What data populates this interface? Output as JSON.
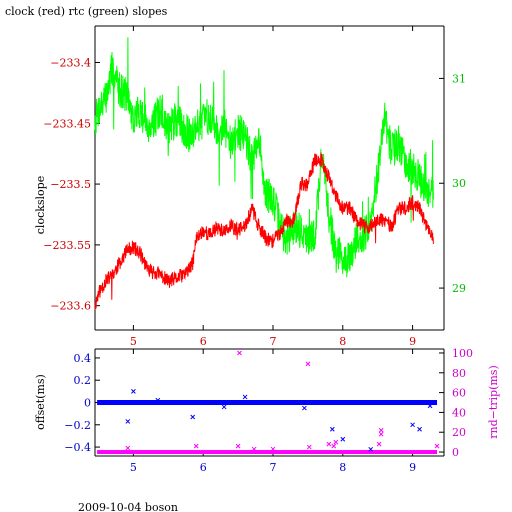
{
  "title": "clock (red) rtc (green) slopes",
  "footer": "2009-10-04 boson",
  "colors": {
    "clock": "#ff0000",
    "rtc": "#00ff00",
    "offset": "#0000ff",
    "rtt": "#ff00ff",
    "axis": "#000000"
  },
  "chart_data": [
    {
      "type": "line",
      "title": "clock (red) rtc (green) slopes",
      "ylabel": "clockslope",
      "x_ticks": [
        5,
        6,
        7,
        8,
        9
      ],
      "x_tick_labels": [
        "5",
        "6",
        "7",
        "8",
        "9"
      ],
      "xlim": [
        4.45,
        9.45
      ],
      "ylim": [
        -233.62,
        -233.37
      ],
      "y_ticks": [
        -233.4,
        -233.45,
        -233.5,
        -233.55,
        -233.6
      ],
      "y_tick_labels": [
        "−233.4",
        "−233.45",
        "−233.5",
        "−233.55",
        "−233.6"
      ],
      "y2lim": [
        28.6,
        31.5
      ],
      "y2_ticks": [
        29,
        30,
        31
      ],
      "y2_tick_labels": [
        "29",
        "30",
        "31"
      ],
      "series": [
        {
          "name": "clock",
          "axis": "left",
          "x": [
            4.45,
            4.5,
            4.55,
            4.6,
            4.7,
            4.8,
            4.9,
            5.0,
            5.1,
            5.2,
            5.3,
            5.4,
            5.5,
            5.6,
            5.7,
            5.8,
            5.85,
            5.9,
            6.0,
            6.1,
            6.2,
            6.3,
            6.4,
            6.5,
            6.6,
            6.7,
            6.8,
            6.9,
            7.0,
            7.1,
            7.2,
            7.3,
            7.4,
            7.5,
            7.6,
            7.7,
            7.8,
            7.9,
            8.0,
            8.1,
            8.2,
            8.3,
            8.4,
            8.5,
            8.6,
            8.7,
            8.8,
            8.9,
            9.0,
            9.1,
            9.2,
            9.3
          ],
          "y": [
            -233.6,
            -233.59,
            -233.585,
            -233.58,
            -233.575,
            -233.565,
            -233.555,
            -233.552,
            -233.557,
            -233.57,
            -233.572,
            -233.575,
            -233.58,
            -233.578,
            -233.575,
            -233.57,
            -233.565,
            -233.545,
            -233.538,
            -233.542,
            -233.535,
            -233.54,
            -233.535,
            -233.538,
            -233.535,
            -233.52,
            -233.535,
            -233.545,
            -233.547,
            -233.54,
            -233.53,
            -233.53,
            -233.5,
            -233.5,
            -233.48,
            -233.48,
            -233.495,
            -233.51,
            -233.52,
            -233.52,
            -233.53,
            -233.535,
            -233.535,
            -233.53,
            -233.53,
            -233.535,
            -233.52,
            -233.52,
            -233.515,
            -233.52,
            -233.535,
            -233.545
          ]
        },
        {
          "name": "rtc",
          "axis": "right",
          "x": [
            4.45,
            4.5,
            4.6,
            4.7,
            4.8,
            4.9,
            5.0,
            5.1,
            5.2,
            5.3,
            5.4,
            5.5,
            5.6,
            5.7,
            5.8,
            5.9,
            6.0,
            6.1,
            6.2,
            6.3,
            6.4,
            6.5,
            6.6,
            6.7,
            6.8,
            6.9,
            7.0,
            7.1,
            7.2,
            7.3,
            7.4,
            7.5,
            7.6,
            7.7,
            7.8,
            7.9,
            8.0,
            8.1,
            8.2,
            8.3,
            8.4,
            8.5,
            8.6,
            8.7,
            8.8,
            8.9,
            9.0,
            9.1,
            9.2,
            9.3
          ],
          "y": [
            30.6,
            30.7,
            30.8,
            31.1,
            30.9,
            30.85,
            30.6,
            30.7,
            30.55,
            30.6,
            30.7,
            30.5,
            30.6,
            30.55,
            30.45,
            30.55,
            30.6,
            30.65,
            30.5,
            30.55,
            30.35,
            30.5,
            30.45,
            30.2,
            30.4,
            29.9,
            29.85,
            29.6,
            29.45,
            29.6,
            29.55,
            29.45,
            29.5,
            30.3,
            29.7,
            29.35,
            29.3,
            29.25,
            29.5,
            29.5,
            29.6,
            30.1,
            30.6,
            30.3,
            30.4,
            30.2,
            30.15,
            30.05,
            29.85,
            29.95
          ]
        }
      ]
    },
    {
      "type": "scatter",
      "ylabel": "offset(ms)",
      "y2label": "rnd−trip(ms)",
      "x_ticks": [
        5,
        6,
        7,
        8,
        9
      ],
      "x_tick_labels": [
        "5",
        "6",
        "7",
        "8",
        "9"
      ],
      "xlim": [
        4.45,
        9.45
      ],
      "ylim": [
        -0.48,
        0.48
      ],
      "y_ticks": [
        0.4,
        0.2,
        0,
        -0.2,
        -0.4
      ],
      "y_tick_labels": [
        "0.4",
        "0.2",
        "0",
        "−0.2",
        "−0.4"
      ],
      "y2lim": [
        -4,
        104
      ],
      "y2_ticks": [
        0,
        20,
        40,
        60,
        80,
        100
      ],
      "y2_tick_labels": [
        "0",
        "20",
        "40",
        "60",
        "80",
        "100"
      ],
      "series": [
        {
          "name": "offset",
          "axis": "left",
          "band": {
            "x_start": 4.48,
            "x_end": 9.35,
            "y": 0.0
          },
          "outliers": {
            "x": [
              4.92,
              5.0,
              5.35,
              5.85,
              6.3,
              6.6,
              7.45,
              7.85,
              8.0,
              8.4,
              9.0,
              9.1,
              9.25
            ],
            "y": [
              -0.17,
              0.1,
              0.02,
              -0.13,
              -0.04,
              0.05,
              -0.05,
              -0.24,
              -0.33,
              -0.42,
              -0.2,
              -0.24,
              -0.03
            ]
          }
        },
        {
          "name": "rtt",
          "axis": "right",
          "band": {
            "x_start": 4.48,
            "x_end": 9.35,
            "y": 0.0
          },
          "outliers": {
            "x": [
              6.52,
              7.5,
              4.92,
              5.9,
              6.5,
              6.73,
              7.0,
              7.52,
              7.8,
              7.87,
              7.9,
              8.55,
              8.55,
              8.52,
              9.35
            ],
            "y": [
              100,
              89,
              4,
              6,
              6,
              3,
              3,
              5,
              8,
              6,
              10,
              22,
              18,
              8,
              6
            ]
          }
        }
      ]
    }
  ]
}
